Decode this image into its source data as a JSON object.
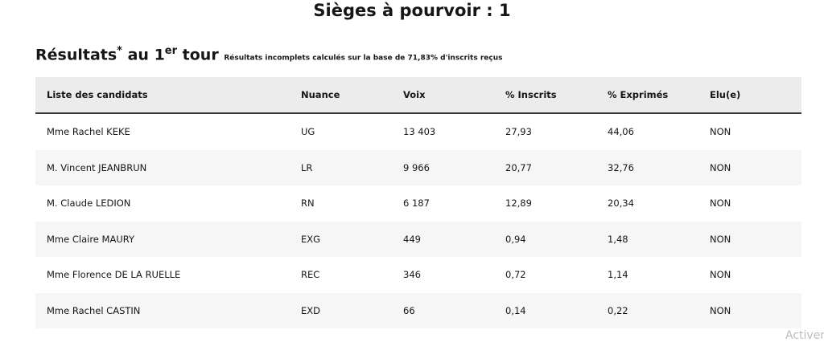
{
  "header": {
    "title": "Sièges à pourvoir : 1"
  },
  "section": {
    "title": "Résultats",
    "asterisk": "*",
    "round_prefix": "au 1",
    "round_sup": "er",
    "round_suffix": "tour",
    "note": "Résultats incomplets calculés sur la base de 71,83% d'inscrits reçus"
  },
  "table": {
    "columns": [
      "Liste des candidats",
      "Nuance",
      "Voix",
      "% Inscrits",
      "% Exprimés",
      "Elu(e)"
    ],
    "rows": [
      [
        "Mme Rachel KEKE",
        "UG",
        "13 403",
        "27,93",
        "44,06",
        "NON"
      ],
      [
        "M. Vincent JEANBRUN",
        "LR",
        "9 966",
        "20,77",
        "32,76",
        "NON"
      ],
      [
        "M. Claude LEDION",
        "RN",
        "6 187",
        "12,89",
        "20,34",
        "NON"
      ],
      [
        "Mme Claire MAURY",
        "EXG",
        "449",
        "0,94",
        "1,48",
        "NON"
      ],
      [
        "Mme Florence DE LA RUELLE",
        "REC",
        "346",
        "0,72",
        "1,14",
        "NON"
      ],
      [
        "Mme Rachel CASTIN",
        "EXD",
        "66",
        "0,14",
        "0,22",
        "NON"
      ]
    ]
  },
  "watermark": "Activer"
}
